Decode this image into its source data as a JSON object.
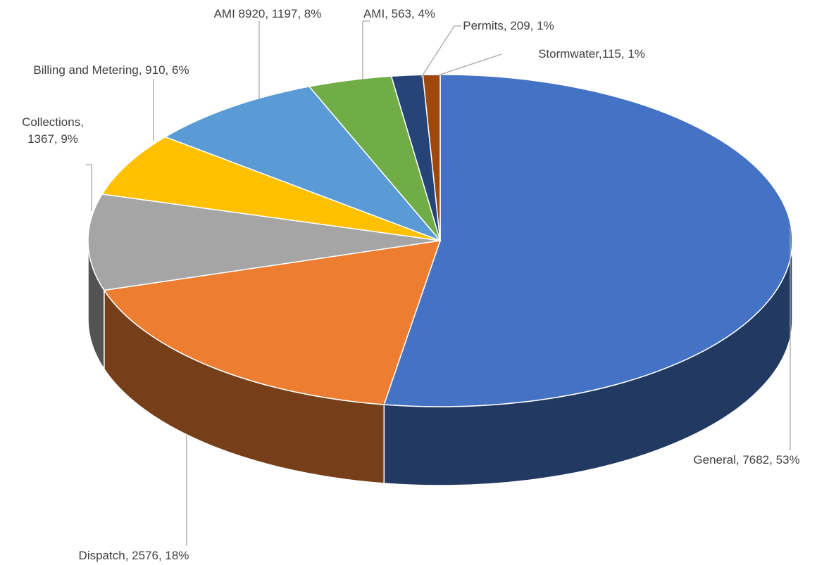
{
  "chart_data": {
    "type": "pie3d",
    "values": [
      7682,
      2576,
      1367,
      910,
      1197,
      563,
      209,
      115
    ],
    "value_labels": [
      "General, 7682, 53%",
      "Dispatch, 2576, 18%",
      "Collections, 1367, 9%",
      "Billing and Metering, 910, 6%",
      "AMI 8920, 1197, 8%",
      "AMI, 563, 4%",
      "Permits, 209, 1%",
      "Stormwater,115, 1%"
    ],
    "colors": [
      "#4472c4",
      "#ed7d31",
      "#a5a5a5",
      "#ffc000",
      "#5b9bd5",
      "#70ad47",
      "#264478",
      "#9e480e"
    ]
  }
}
